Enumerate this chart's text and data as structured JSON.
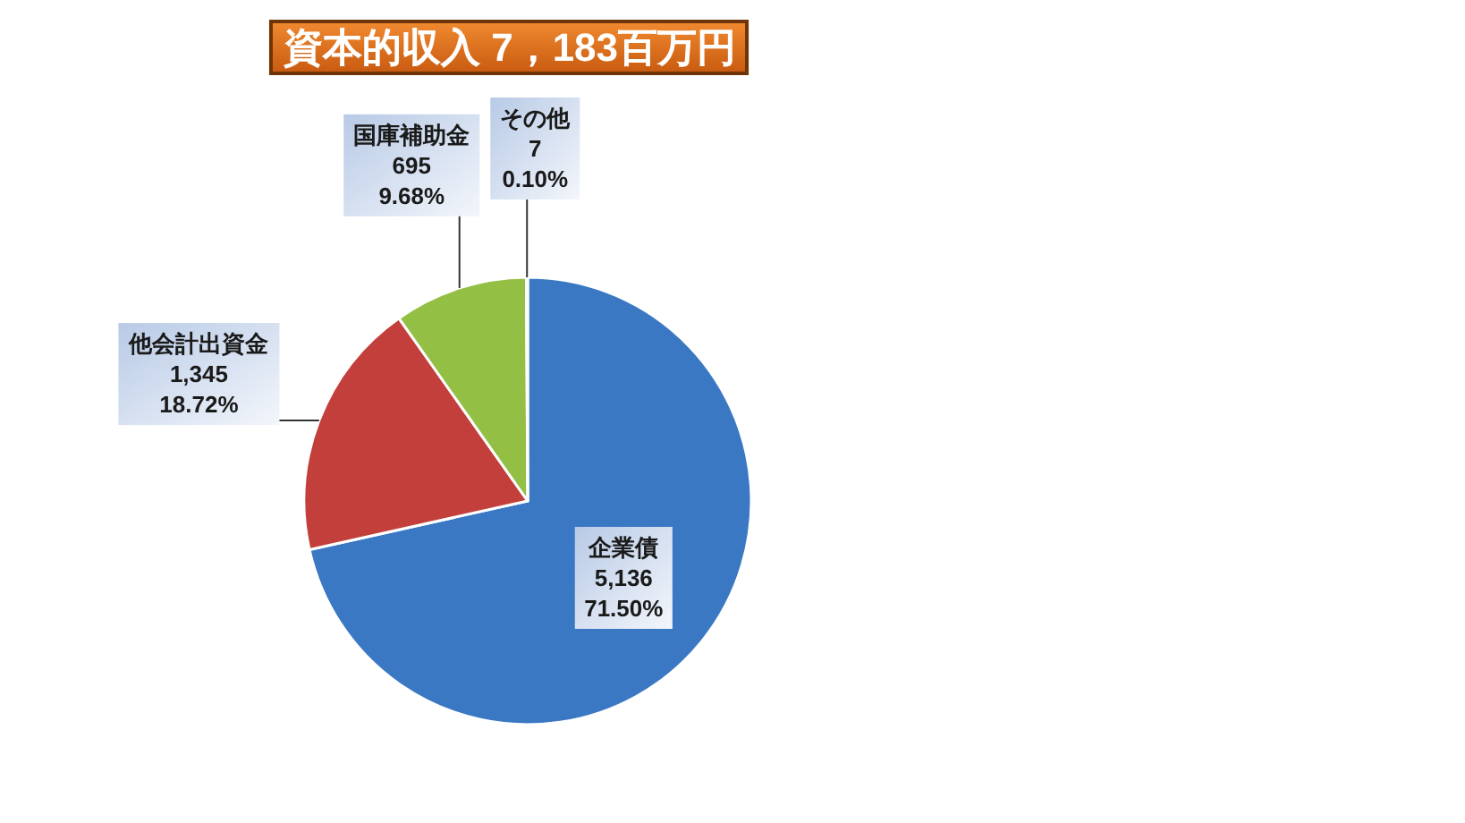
{
  "chart_data": {
    "type": "pie",
    "title": "資本的収入 7，183百万円",
    "categories": [
      "企業債",
      "他会計出資金",
      "国庫補助金",
      "その他"
    ],
    "values": [
      5136,
      1345,
      695,
      7
    ],
    "colors": [
      "#3b78c4",
      "#c23f3b",
      "#93bf45",
      "#a8a8a8"
    ],
    "value_labels": [
      "5,136\n71.50%",
      "1,345\n18.72%",
      "695\n9.68%",
      "7\n0.10%"
    ]
  }
}
